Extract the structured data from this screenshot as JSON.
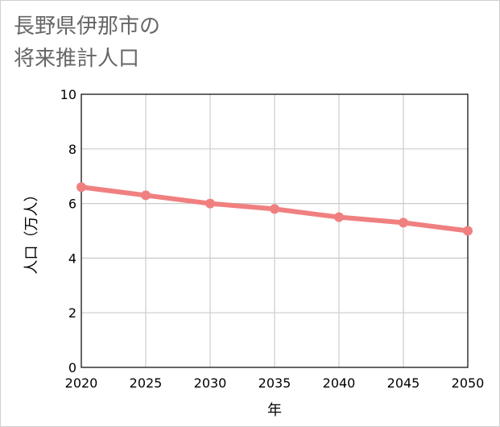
{
  "chart_data": {
    "type": "line",
    "title_lines": [
      "長野県伊那市の",
      "将来推計人口"
    ],
    "xlabel": "年",
    "ylabel": "人口（万人）",
    "x": [
      2020,
      2025,
      2030,
      2035,
      2040,
      2045,
      2050
    ],
    "x_tick_labels": [
      "2020",
      "2025",
      "2030",
      "2035",
      "2040",
      "2045",
      "2050"
    ],
    "xlim": [
      2020,
      2050
    ],
    "ylim": [
      0,
      10
    ],
    "y_ticks": [
      0,
      2,
      4,
      6,
      8,
      10
    ],
    "y_tick_labels": [
      "0",
      "2",
      "4",
      "6",
      "8",
      "10"
    ],
    "grid": true,
    "series": [
      {
        "name": "人口",
        "color": "#f08080",
        "values": [
          6.6,
          6.3,
          6.0,
          5.8,
          5.5,
          5.3,
          5.0
        ]
      }
    ]
  }
}
